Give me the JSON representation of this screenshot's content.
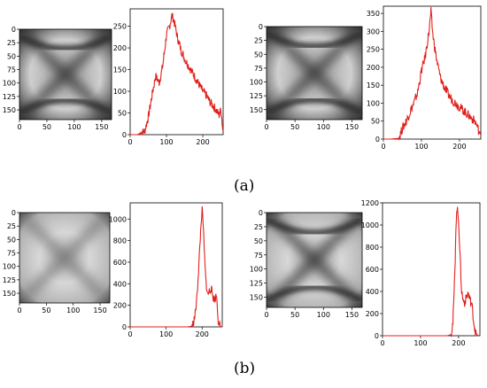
{
  "figure": {
    "label_a": "(a)",
    "label_b": "(b)",
    "colors": {
      "line": "#e0201c",
      "axis": "#000000"
    }
  },
  "chart_data": [
    {
      "type": "image",
      "panel": "a-left",
      "description": "grayscale specimen image with dark X pattern",
      "xticks": [
        "0",
        "50",
        "100",
        "150"
      ],
      "yticks": [
        "0",
        "25",
        "50",
        "75",
        "100",
        "125",
        "150"
      ],
      "xlim": [
        0,
        168
      ],
      "ylim": [
        168,
        0
      ]
    },
    {
      "type": "line",
      "panel": "a-left",
      "title": "",
      "xlabel": "",
      "ylabel": "",
      "xlim": [
        0,
        256
      ],
      "ylim": [
        0,
        290
      ],
      "xticks": [
        "0",
        "100",
        "200"
      ],
      "yticks": [
        "0",
        "50",
        "100",
        "150",
        "200",
        "250"
      ],
      "series": [
        {
          "x": [
            0,
            20,
            40,
            50,
            60,
            70,
            80,
            90,
            100,
            110,
            115,
            120,
            130,
            140,
            150,
            160,
            170,
            180,
            190,
            200,
            210,
            220,
            230,
            240,
            245,
            250,
            255
          ],
          "values": [
            0,
            0,
            8,
            40,
            90,
            135,
            120,
            160,
            230,
            255,
            275,
            265,
            225,
            195,
            175,
            160,
            145,
            130,
            115,
            100,
            90,
            75,
            65,
            52,
            45,
            60,
            10
          ]
        }
      ]
    },
    {
      "type": "image",
      "panel": "a-right",
      "description": "grayscale specimen image with dark X pattern",
      "xticks": [
        "0",
        "50",
        "100",
        "150"
      ],
      "yticks": [
        "0",
        "25",
        "50",
        "75",
        "100",
        "125",
        "150"
      ],
      "xlim": [
        0,
        168
      ],
      "ylim": [
        168,
        0
      ]
    },
    {
      "type": "line",
      "panel": "a-right",
      "title": "",
      "xlabel": "",
      "ylabel": "",
      "xlim": [
        0,
        256
      ],
      "ylim": [
        0,
        370
      ],
      "xticks": [
        "0",
        "100",
        "200"
      ],
      "yticks": [
        "0",
        "50",
        "100",
        "150",
        "200",
        "250",
        "300",
        "350"
      ],
      "series": [
        {
          "x": [
            0,
            20,
            40,
            50,
            60,
            70,
            80,
            90,
            100,
            110,
            120,
            125,
            130,
            140,
            150,
            160,
            170,
            180,
            190,
            200,
            210,
            220,
            230,
            240,
            245,
            250,
            255
          ],
          "values": [
            0,
            0,
            2,
            30,
            50,
            75,
            100,
            130,
            190,
            230,
            300,
            355,
            290,
            220,
            170,
            145,
            125,
            110,
            100,
            90,
            80,
            70,
            60,
            50,
            40,
            25,
            5
          ]
        }
      ]
    },
    {
      "type": "image",
      "panel": "b-left",
      "description": "light grayscale specimen image with faint X pattern",
      "xticks": [
        "0",
        "50",
        "100",
        "150"
      ],
      "yticks": [
        "0",
        "25",
        "50",
        "75",
        "100",
        "125",
        "150"
      ],
      "xlim": [
        0,
        168
      ],
      "ylim": [
        168,
        0
      ]
    },
    {
      "type": "line",
      "panel": "b-left",
      "title": "",
      "xlabel": "",
      "ylabel": "",
      "xlim": [
        0,
        256
      ],
      "ylim": [
        0,
        1150
      ],
      "xticks": [
        "0",
        "100",
        "200"
      ],
      "yticks": [
        "0",
        "200",
        "400",
        "600",
        "800",
        "1000"
      ],
      "series": [
        {
          "x": [
            0,
            160,
            170,
            175,
            180,
            185,
            190,
            195,
            198,
            200,
            203,
            206,
            210,
            215,
            220,
            225,
            230,
            235,
            240,
            245,
            250,
            255
          ],
          "values": [
            0,
            0,
            5,
            30,
            100,
            250,
            520,
            820,
            1000,
            1080,
            950,
            700,
            450,
            300,
            330,
            360,
            280,
            250,
            300,
            60,
            5,
            0
          ]
        }
      ]
    },
    {
      "type": "image",
      "panel": "b-right",
      "description": "light grayscale specimen image with dark X pattern",
      "xticks": [
        "0",
        "50",
        "100",
        "150"
      ],
      "yticks": [
        "0",
        "25",
        "50",
        "75",
        "100",
        "125",
        "150"
      ],
      "xlim": [
        0,
        168
      ],
      "ylim": [
        168,
        0
      ]
    },
    {
      "type": "line",
      "panel": "b-right",
      "title": "",
      "xlabel": "",
      "ylabel": "",
      "xlim": [
        0,
        256
      ],
      "ylim": [
        0,
        1200
      ],
      "xticks": [
        "0",
        "100",
        "200"
      ],
      "yticks": [
        "0",
        "200",
        "400",
        "600",
        "800",
        "1000",
        "1200"
      ],
      "series": [
        {
          "x": [
            0,
            170,
            180,
            185,
            190,
            193,
            196,
            200,
            204,
            208,
            212,
            216,
            220,
            225,
            230,
            235,
            240,
            245,
            250,
            255
          ],
          "values": [
            0,
            0,
            10,
            120,
            550,
            1000,
            1150,
            1050,
            700,
            400,
            320,
            300,
            340,
            390,
            320,
            280,
            120,
            20,
            5,
            0
          ]
        }
      ]
    }
  ]
}
